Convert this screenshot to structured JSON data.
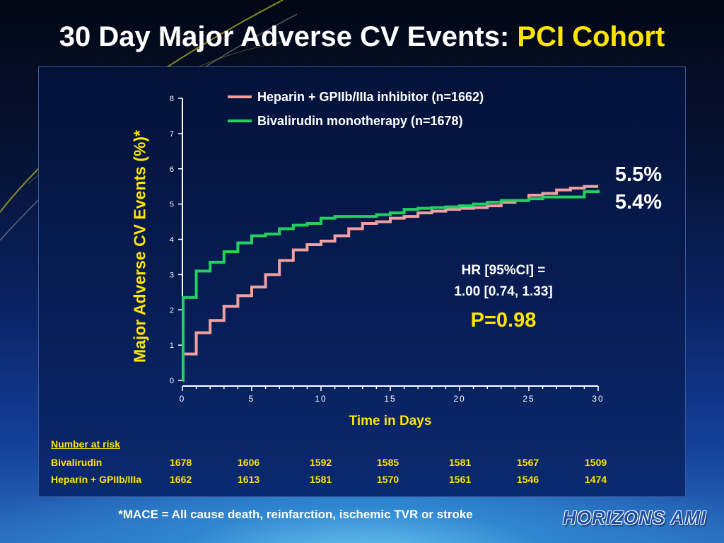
{
  "slide": {
    "title": "30 Day Major Adverse CV Events: ",
    "title_highlight": "PCI Cohort",
    "footnote": "*MACE = All cause death, reinfarction, ischemic TVR or stroke",
    "logo_text": "HORIZONS AMI"
  },
  "colors": {
    "heparin": "#f0a0a0",
    "bivalirudin": "#22d060",
    "highlight": "#ffe500",
    "axis": "#ffffff"
  },
  "annotations": {
    "end_heparin": "5.5%",
    "end_bivalirudin": "5.4%",
    "hr_line1": "HR [95%CI] =",
    "hr_line2": "1.00 [0.74, 1.33]",
    "p_value": "P=0.98"
  },
  "risk_table": {
    "header": "Number at risk",
    "rows": [
      {
        "label": "Bivalirudin",
        "values": [
          "1678",
          "1606",
          "1592",
          "1585",
          "1581",
          "1567",
          "1509"
        ]
      },
      {
        "label": "Heparin + GPIIb/IIIa",
        "values": [
          "1662",
          "1613",
          "1581",
          "1570",
          "1561",
          "1546",
          "1474"
        ]
      }
    ]
  },
  "chart_data": {
    "type": "line",
    "title": "",
    "xlabel": "Time in Days",
    "ylabel": "Major Adverse CV Events (%)*",
    "xlim": [
      0,
      30
    ],
    "ylim": [
      0,
      8
    ],
    "xticks": [
      0,
      5,
      10,
      15,
      20,
      25,
      30
    ],
    "yticks": [
      0,
      1,
      2,
      3,
      4,
      5,
      6,
      7,
      8
    ],
    "grid": false,
    "legend_position": "top",
    "step": true,
    "series": [
      {
        "name": "Heparin + GPIIb/IIIa inhibitor (n=1662)",
        "color": "#f0a0a0",
        "x": [
          0,
          0.05,
          1,
          2,
          3,
          4,
          5,
          6,
          7,
          8,
          9,
          10,
          11,
          12,
          13,
          14,
          15,
          16,
          17,
          18,
          19,
          20,
          21,
          22,
          23,
          24,
          25,
          26,
          27,
          28,
          29,
          30
        ],
        "y": [
          0,
          0.75,
          1.35,
          1.7,
          2.1,
          2.4,
          2.65,
          3.0,
          3.4,
          3.7,
          3.85,
          3.95,
          4.1,
          4.3,
          4.45,
          4.5,
          4.6,
          4.65,
          4.75,
          4.8,
          4.85,
          4.88,
          4.9,
          4.95,
          5.05,
          5.1,
          5.25,
          5.3,
          5.4,
          5.45,
          5.5,
          5.5
        ]
      },
      {
        "name": "Bivalirudin monotherapy (n=1678)",
        "color": "#22d060",
        "x": [
          0,
          0.05,
          1,
          2,
          3,
          4,
          5,
          6,
          7,
          8,
          9,
          10,
          11,
          12,
          13,
          14,
          15,
          16,
          17,
          18,
          19,
          20,
          21,
          22,
          23,
          24,
          25,
          26,
          27,
          28,
          29,
          30
        ],
        "y": [
          0,
          2.35,
          3.1,
          3.35,
          3.65,
          3.9,
          4.1,
          4.15,
          4.3,
          4.4,
          4.45,
          4.6,
          4.65,
          4.65,
          4.65,
          4.7,
          4.75,
          4.85,
          4.88,
          4.9,
          4.92,
          4.95,
          5.0,
          5.05,
          5.1,
          5.1,
          5.15,
          5.2,
          5.2,
          5.2,
          5.35,
          5.4
        ]
      }
    ]
  }
}
